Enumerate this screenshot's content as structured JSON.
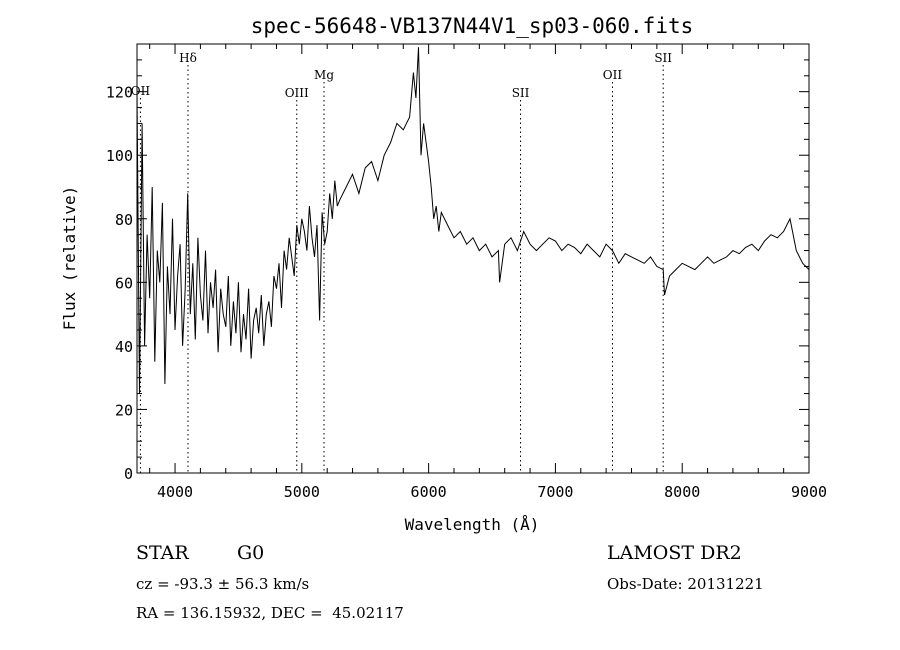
{
  "chart_data": {
    "type": "line",
    "title": "spec-56648-VB137N44V1_sp03-060.fits",
    "xlabel": "Wavelength (Å)",
    "ylabel": "Flux (relative)",
    "xlim": [
      3700,
      9000
    ],
    "ylim": [
      0,
      135
    ],
    "x_ticks": [
      4000,
      5000,
      6000,
      7000,
      8000,
      9000
    ],
    "y_ticks": [
      0,
      20,
      40,
      60,
      80,
      100,
      120
    ],
    "grid": false,
    "series": [
      {
        "name": "flux",
        "x": [
          3700,
          3720,
          3740,
          3760,
          3780,
          3800,
          3820,
          3840,
          3860,
          3880,
          3900,
          3920,
          3940,
          3960,
          3980,
          4000,
          4020,
          4040,
          4060,
          4080,
          4100,
          4120,
          4140,
          4160,
          4180,
          4200,
          4220,
          4240,
          4260,
          4280,
          4300,
          4320,
          4340,
          4360,
          4380,
          4400,
          4420,
          4440,
          4460,
          4480,
          4500,
          4520,
          4540,
          4560,
          4580,
          4600,
          4620,
          4640,
          4660,
          4680,
          4700,
          4720,
          4740,
          4760,
          4780,
          4800,
          4820,
          4840,
          4860,
          4880,
          4900,
          4920,
          4940,
          4960,
          4980,
          5000,
          5020,
          5040,
          5060,
          5080,
          5100,
          5120,
          5140,
          5160,
          5180,
          5200,
          5220,
          5240,
          5260,
          5280,
          5300,
          5350,
          5400,
          5450,
          5500,
          5550,
          5600,
          5650,
          5700,
          5750,
          5800,
          5850,
          5880,
          5900,
          5920,
          5940,
          5960,
          5980,
          6000,
          6020,
          6040,
          6060,
          6080,
          6100,
          6150,
          6200,
          6250,
          6300,
          6350,
          6400,
          6450,
          6500,
          6550,
          6560,
          6600,
          6650,
          6700,
          6750,
          6800,
          6850,
          6900,
          6950,
          7000,
          7050,
          7100,
          7150,
          7200,
          7250,
          7300,
          7350,
          7400,
          7450,
          7500,
          7550,
          7600,
          7650,
          7700,
          7750,
          7800,
          7850,
          7860,
          7900,
          7950,
          8000,
          8050,
          8100,
          8150,
          8200,
          8250,
          8300,
          8350,
          8400,
          8450,
          8500,
          8550,
          8600,
          8650,
          8700,
          8750,
          8800,
          8850,
          8900,
          8950,
          9000
        ],
        "values": [
          120,
          25,
          110,
          40,
          75,
          55,
          90,
          35,
          70,
          60,
          85,
          28,
          65,
          50,
          80,
          45,
          62,
          72,
          40,
          58,
          88,
          50,
          66,
          42,
          74,
          56,
          48,
          70,
          44,
          60,
          52,
          64,
          38,
          58,
          50,
          46,
          62,
          40,
          54,
          44,
          60,
          38,
          50,
          42,
          58,
          36,
          48,
          52,
          44,
          56,
          40,
          50,
          54,
          46,
          62,
          58,
          66,
          52,
          70,
          64,
          74,
          68,
          62,
          78,
          72,
          80,
          76,
          70,
          84,
          74,
          68,
          78,
          48,
          82,
          72,
          76,
          88,
          80,
          92,
          84,
          86,
          90,
          94,
          88,
          96,
          98,
          92,
          100,
          104,
          110,
          108,
          112,
          126,
          118,
          134,
          100,
          110,
          104,
          98,
          90,
          80,
          84,
          76,
          82,
          78,
          74,
          76,
          72,
          74,
          70,
          72,
          68,
          70,
          60,
          72,
          74,
          70,
          76,
          72,
          70,
          72,
          74,
          73,
          70,
          72,
          71,
          69,
          72,
          70,
          68,
          72,
          70,
          66,
          69,
          68,
          67,
          66,
          68,
          65,
          64,
          56,
          62,
          64,
          66,
          65,
          64,
          66,
          68,
          66,
          67,
          68,
          70,
          69,
          71,
          72,
          70,
          73,
          75,
          74,
          76,
          80,
          70,
          66,
          64
        ]
      }
    ],
    "lines": [
      {
        "label": "OII",
        "x": 3727
      },
      {
        "label": "Hδ",
        "x": 4102
      },
      {
        "label": "OIII",
        "x": 4960
      },
      {
        "label": "Mg",
        "x": 5175
      },
      {
        "label": "SII",
        "x": 6725
      },
      {
        "label": "OII",
        "x": 7450
      },
      {
        "label": "SII",
        "x": 7850
      }
    ]
  },
  "info": {
    "class": "STAR",
    "subclass": "G0",
    "survey": "LAMOST DR2",
    "cz": "cz = -93.3 ± 56.3 km/s",
    "obs_date": "Obs-Date: 20131221",
    "coords": "RA = 136.15932, DEC =  45.02117"
  }
}
